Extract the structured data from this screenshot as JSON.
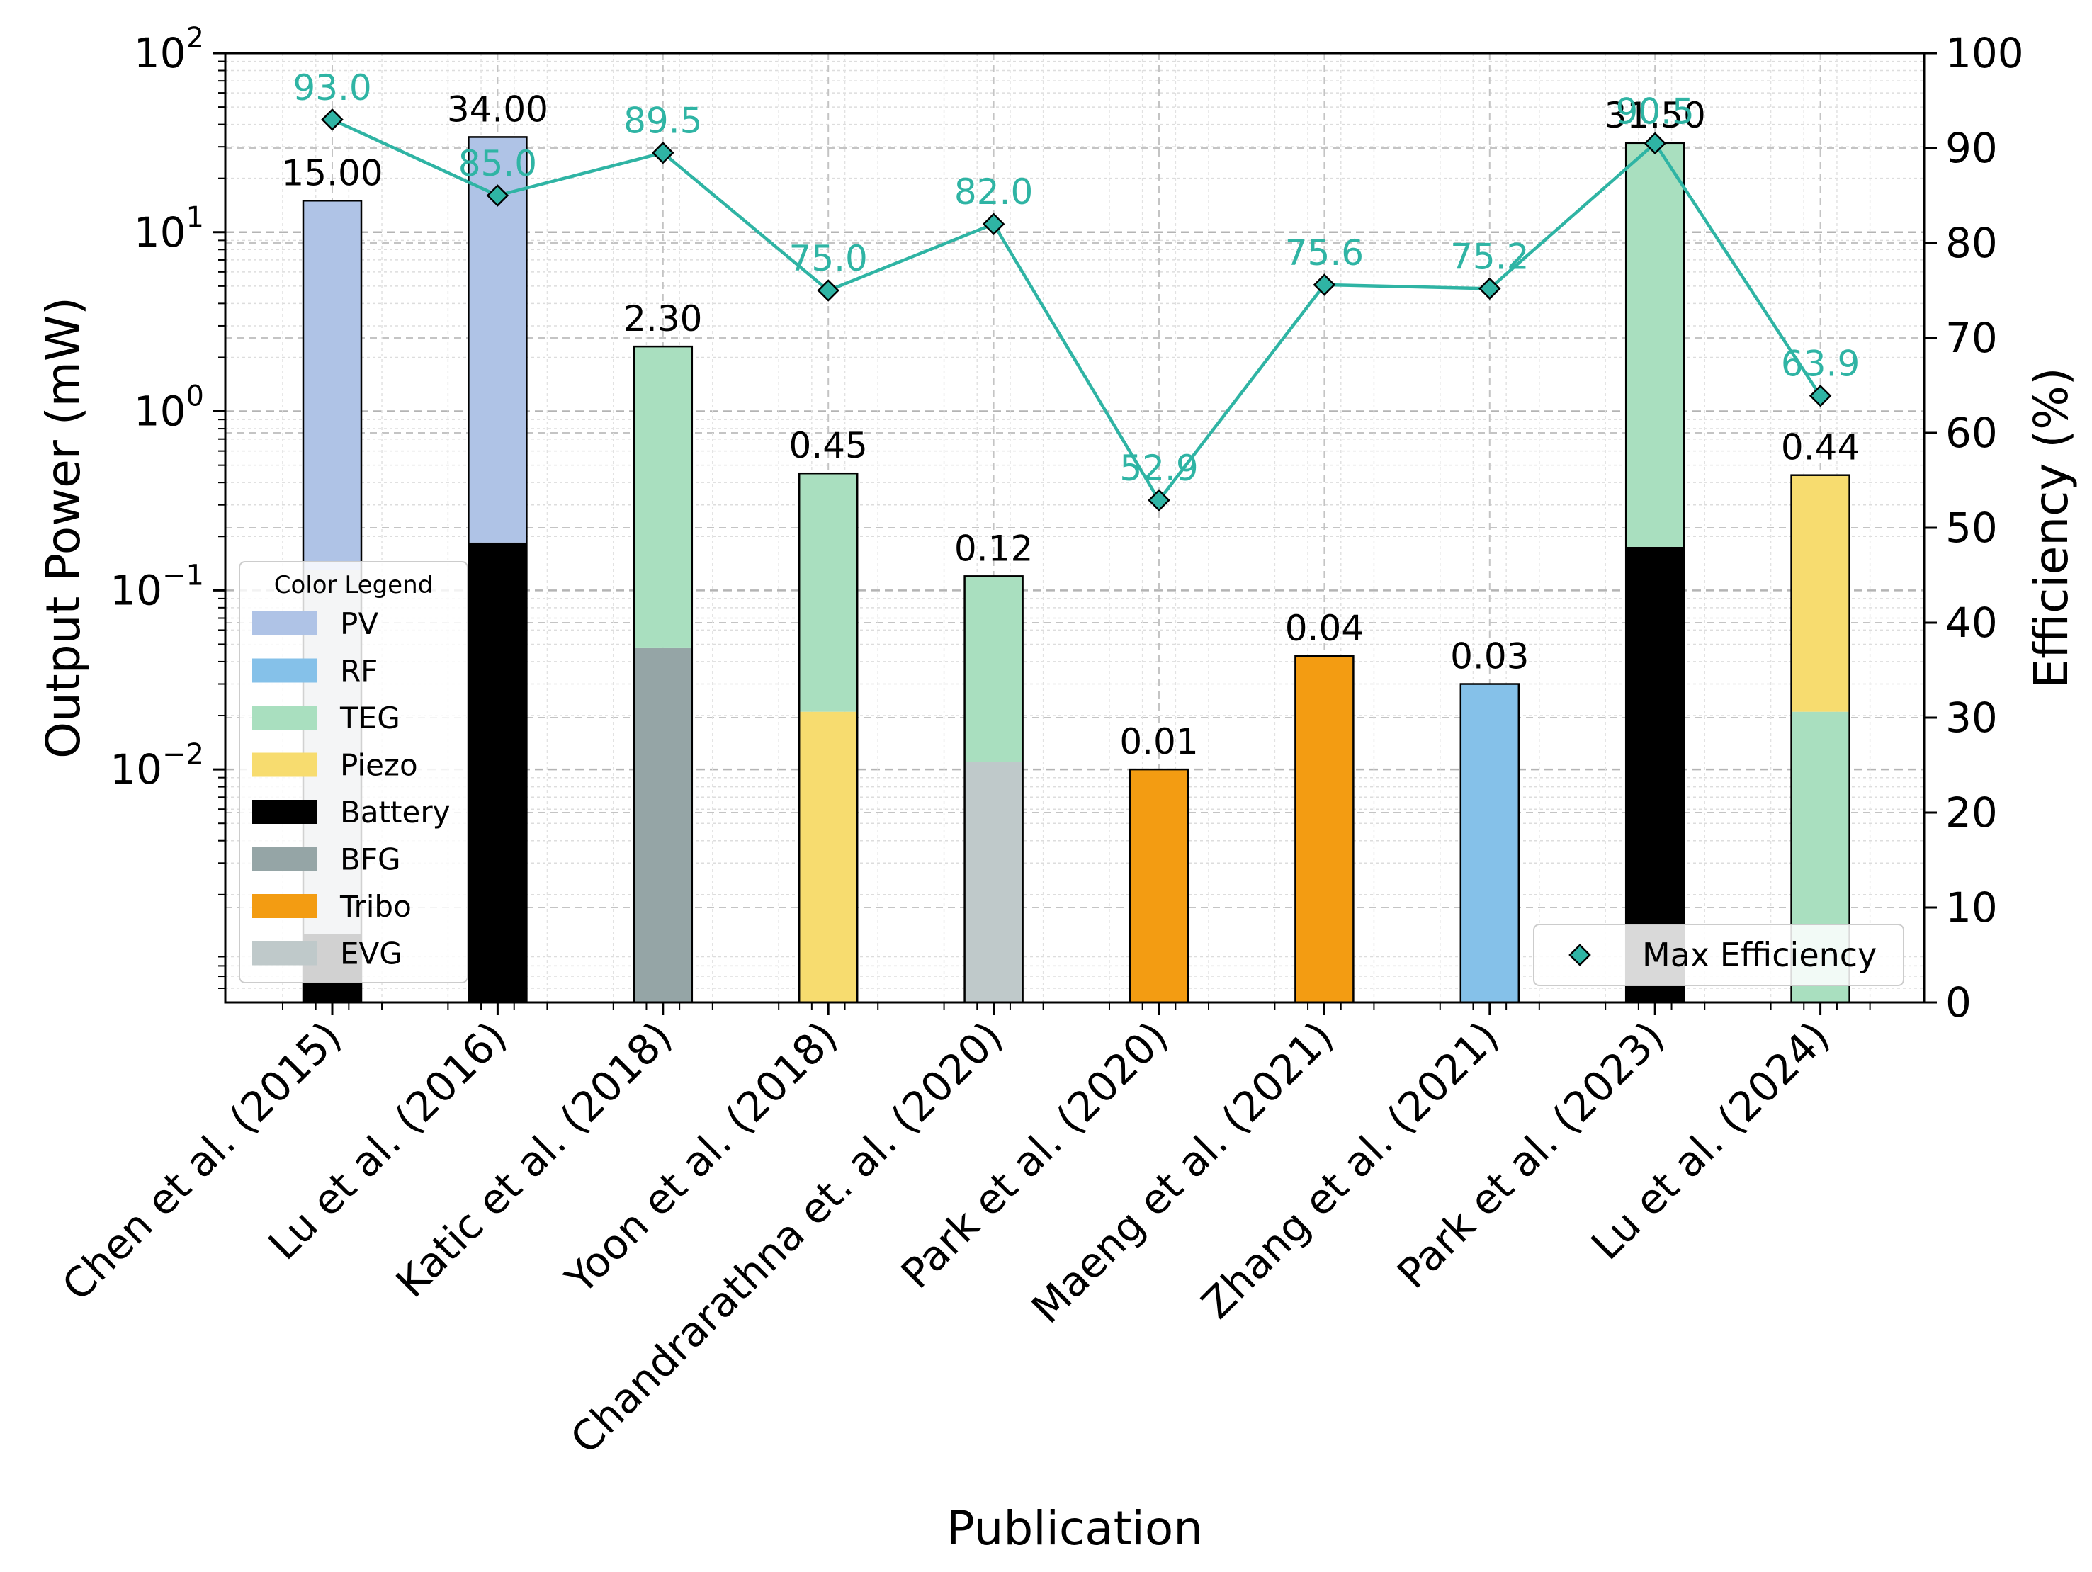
{
  "chart_data": {
    "type": "bar",
    "categories": [
      "Chen et al. (2015)",
      "Lu et al. (2016)",
      "Katic et al. (2018)",
      "Yoon et al. (2018)",
      "Chandrarathna et. al. (2020)",
      "Park et al. (2020)",
      "Maeng et al. (2021)",
      "Zhang et al. (2021)",
      "Park et al. (2023)",
      "Lu et al. (2024)"
    ],
    "xlabel": "Publication",
    "ylabel": "Output Power (mW)",
    "y2label": "Efficiency (%)",
    "yscale": "log",
    "ylim": [
      0.0005,
      100
    ],
    "y2lim": [
      0,
      100
    ],
    "y_ticks": [
      {
        "base": "10",
        "exp": "2"
      },
      {
        "base": "10",
        "exp": "1"
      },
      {
        "base": "10",
        "exp": "0"
      },
      {
        "base": "10",
        "exp": "−1"
      },
      {
        "base": "10",
        "exp": "−2"
      }
    ],
    "y2_ticks": [
      "100",
      "90",
      "80",
      "70",
      "60",
      "50",
      "40",
      "30",
      "20",
      "10",
      "0"
    ],
    "grid": true,
    "bars": [
      {
        "total": 15.0,
        "label": "15.00",
        "segments": [
          {
            "source": "Battery",
            "from": 0.0005,
            "to": 0.0012
          },
          {
            "source": "EVG",
            "from": 0.0012,
            "to": 0.13
          },
          {
            "source": "PV",
            "from": 0.13,
            "to": 15.0
          }
        ]
      },
      {
        "total": 34.0,
        "label": "34.00",
        "segments": [
          {
            "source": "Battery",
            "from": 0.0005,
            "to": 0.185
          },
          {
            "source": "PV",
            "from": 0.185,
            "to": 34.0
          }
        ]
      },
      {
        "total": 2.3,
        "label": "2.30",
        "segments": [
          {
            "source": "BFG",
            "from": 0.0005,
            "to": 0.048
          },
          {
            "source": "TEG",
            "from": 0.048,
            "to": 2.3
          }
        ]
      },
      {
        "total": 0.45,
        "label": "0.45",
        "segments": [
          {
            "source": "Piezo",
            "from": 0.0005,
            "to": 0.021
          },
          {
            "source": "TEG",
            "from": 0.021,
            "to": 0.45
          }
        ]
      },
      {
        "total": 0.12,
        "label": "0.12",
        "segments": [
          {
            "source": "EVG",
            "from": 0.0005,
            "to": 0.011
          },
          {
            "source": "TEG",
            "from": 0.011,
            "to": 0.12
          }
        ]
      },
      {
        "total": 0.01,
        "label": "0.01",
        "segments": [
          {
            "source": "Tribo",
            "from": 0.0005,
            "to": 0.01
          }
        ]
      },
      {
        "total": 0.043,
        "label": "0.04",
        "segments": [
          {
            "source": "Tribo",
            "from": 0.0005,
            "to": 0.043
          }
        ]
      },
      {
        "total": 0.03,
        "label": "0.03",
        "segments": [
          {
            "source": "RF",
            "from": 0.0005,
            "to": 0.03
          }
        ]
      },
      {
        "total": 31.5,
        "label": "31.50",
        "segments": [
          {
            "source": "Battery",
            "from": 0.0005,
            "to": 0.175
          },
          {
            "source": "TEG",
            "from": 0.175,
            "to": 31.5
          }
        ]
      },
      {
        "total": 0.44,
        "label": "0.44",
        "segments": [
          {
            "source": "TEG",
            "from": 0.0005,
            "to": 0.021
          },
          {
            "source": "Piezo",
            "from": 0.021,
            "to": 0.44
          }
        ]
      }
    ],
    "efficiency": {
      "name": "Max Efficiency",
      "values": [
        93.0,
        85.0,
        89.5,
        75.0,
        82.0,
        52.9,
        75.6,
        75.2,
        90.5,
        63.9
      ],
      "labels": [
        "93.0",
        "85.0",
        "89.5",
        "75.0",
        "82.0",
        "52.9",
        "75.6",
        "75.2",
        "90.5",
        "63.9"
      ],
      "color": "#2fb4a4"
    },
    "legend": {
      "title": "Color Legend",
      "placement": "lower-left",
      "items": [
        {
          "label": "PV",
          "color": "#afc3e6"
        },
        {
          "label": "RF",
          "color": "#85c1e9"
        },
        {
          "label": "TEG",
          "color": "#a9dfbf"
        },
        {
          "label": "Piezo",
          "color": "#f7dc6f"
        },
        {
          "label": "Battery",
          "color": "#000000"
        },
        {
          "label": "BFG",
          "color": "#95a5a6"
        },
        {
          "label": "Tribo",
          "color": "#f39c12"
        },
        {
          "label": "EVG",
          "color": "#bfc9ca"
        }
      ]
    },
    "legend2_placement": "lower-right"
  }
}
